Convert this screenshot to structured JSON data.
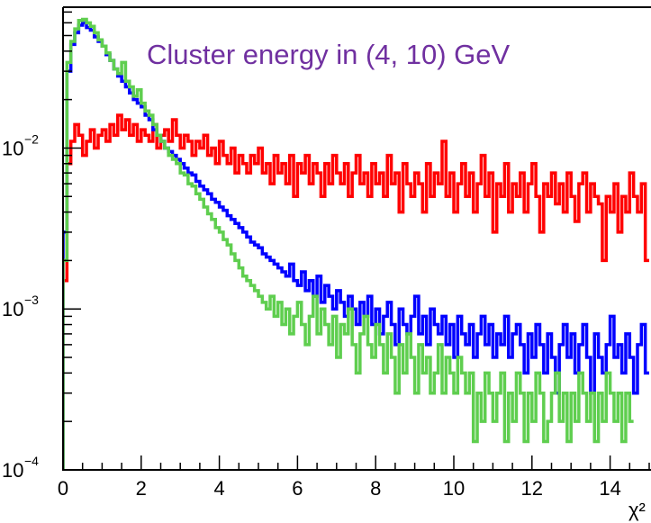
{
  "chart_data": {
    "type": "histogram",
    "title": "Cluster energy in (4, 10) GeV",
    "xlabel": "χ²",
    "ylabel": "",
    "xlim": [
      0,
      15.0
    ],
    "ylim": [
      0.0001,
      0.075
    ],
    "y_scale": "log",
    "grid": false,
    "legend": "none",
    "x_ticks": [
      "0",
      "2",
      "4",
      "6",
      "8",
      "10",
      "12",
      "14"
    ],
    "y_ticks": [
      {
        "base": "10",
        "exp": "−2",
        "value": 0.01
      },
      {
        "base": "10",
        "exp": "−3",
        "value": 0.001
      },
      {
        "base": "10",
        "exp": "−4",
        "value": 0.0001
      }
    ],
    "bin_width": 0.1,
    "colors": {
      "title": "#7030a0",
      "axis": "#000000"
    },
    "series": [
      {
        "color": "#ff0000",
        "values": [
          0.0015,
          0.008,
          0.011,
          0.014,
          0.012,
          0.009,
          0.011,
          0.013,
          0.01,
          0.012,
          0.013,
          0.011,
          0.014,
          0.012,
          0.016,
          0.013,
          0.015,
          0.012,
          0.014,
          0.011,
          0.013,
          0.012,
          0.011,
          0.014,
          0.01,
          0.012,
          0.013,
          0.011,
          0.015,
          0.012,
          0.01,
          0.012,
          0.011,
          0.009,
          0.011,
          0.01,
          0.012,
          0.009,
          0.01,
          0.008,
          0.011,
          0.009,
          0.008,
          0.01,
          0.007,
          0.009,
          0.008,
          0.007,
          0.009,
          0.008,
          0.01,
          0.007,
          0.008,
          0.006,
          0.009,
          0.007,
          0.008,
          0.006,
          0.009,
          0.005,
          0.008,
          0.007,
          0.009,
          0.006,
          0.008,
          0.007,
          0.005,
          0.008,
          0.006,
          0.009,
          0.007,
          0.006,
          0.008,
          0.005,
          0.007,
          0.009,
          0.006,
          0.007,
          0.005,
          0.008,
          0.006,
          0.007,
          0.005,
          0.009,
          0.006,
          0.007,
          0.004,
          0.008,
          0.006,
          0.005,
          0.007,
          0.006,
          0.004,
          0.008,
          0.005,
          0.007,
          0.006,
          0.011,
          0.005,
          0.007,
          0.004,
          0.006,
          0.008,
          0.005,
          0.007,
          0.004,
          0.006,
          0.009,
          0.005,
          0.007,
          0.003,
          0.006,
          0.005,
          0.008,
          0.004,
          0.006,
          0.005,
          0.007,
          0.004,
          0.006,
          0.008,
          0.005,
          0.003,
          0.006,
          0.005,
          0.007,
          0.0045,
          0.006,
          0.004,
          0.007,
          0.005,
          0.0035,
          0.006,
          0.007,
          0.004,
          0.006,
          0.005,
          0.0045,
          0.002,
          0.005,
          0.004,
          0.006,
          0.003,
          0.005,
          0.004,
          0.007,
          0.005,
          0.004,
          0.006,
          0.002
        ]
      },
      {
        "color": "#0000ff",
        "values": [
          0.003,
          0.03,
          0.044,
          0.052,
          0.058,
          0.06,
          0.056,
          0.054,
          0.049,
          0.046,
          0.043,
          0.038,
          0.035,
          0.031,
          0.028,
          0.026,
          0.024,
          0.022,
          0.02,
          0.019,
          0.018,
          0.016,
          0.015,
          0.013,
          0.012,
          0.011,
          0.01,
          0.0095,
          0.009,
          0.0085,
          0.008,
          0.0075,
          0.007,
          0.0068,
          0.0062,
          0.0058,
          0.0055,
          0.0052,
          0.0048,
          0.0046,
          0.0043,
          0.0041,
          0.0038,
          0.0036,
          0.0034,
          0.0032,
          0.003,
          0.0028,
          0.0026,
          0.0025,
          0.0024,
          0.0022,
          0.0021,
          0.002,
          0.0019,
          0.0018,
          0.0017,
          0.0016,
          0.0019,
          0.0015,
          0.0014,
          0.0017,
          0.0013,
          0.0015,
          0.0012,
          0.0016,
          0.0011,
          0.0014,
          0.0012,
          0.001,
          0.0013,
          0.0011,
          0.0009,
          0.0012,
          0.001,
          0.0008,
          0.0011,
          0.0009,
          0.0012,
          0.0008,
          0.001,
          0.0007,
          0.0009,
          0.0011,
          0.0008,
          0.0006,
          0.001,
          0.0008,
          0.0007,
          0.0009,
          0.0012,
          0.0007,
          0.0009,
          0.0006,
          0.001,
          0.0008,
          0.0007,
          0.0009,
          0.0006,
          0.0008,
          0.0005,
          0.0009,
          0.0007,
          0.0006,
          0.0008,
          0.0005,
          0.0007,
          0.0009,
          0.0006,
          0.0008,
          0.0005,
          0.0007,
          0.0006,
          0.0009,
          0.0005,
          0.0007,
          0.0008,
          0.0006,
          0.0004,
          0.0007,
          0.0005,
          0.0008,
          0.0006,
          0.0004,
          0.0007,
          0.0005,
          0.0003,
          0.0006,
          0.0008,
          0.0005,
          0.0007,
          0.0004,
          0.0006,
          0.0008,
          0.0005,
          0.0003,
          0.0007,
          0.0005,
          0.0004,
          0.0006,
          0.0009,
          0.0005,
          0.0006,
          0.0004,
          0.0007,
          0.0005,
          0.0003,
          0.0006,
          0.0008,
          0.0004
        ]
      },
      {
        "color": "#5fce4f",
        "values": [
          0.002,
          0.034,
          0.046,
          0.055,
          0.062,
          0.063,
          0.06,
          0.057,
          0.052,
          0.047,
          0.043,
          0.039,
          0.035,
          0.031,
          0.029,
          0.034,
          0.026,
          0.024,
          0.021,
          0.023,
          0.019,
          0.017,
          0.016,
          0.014,
          0.012,
          0.011,
          0.01,
          0.009,
          0.0085,
          0.008,
          0.007,
          0.0068,
          0.006,
          0.0058,
          0.0052,
          0.0048,
          0.0043,
          0.0039,
          0.0036,
          0.0032,
          0.003,
          0.0027,
          0.0025,
          0.0022,
          0.002,
          0.0018,
          0.0016,
          0.0015,
          0.0014,
          0.0013,
          0.0012,
          0.0011,
          0.001,
          0.0012,
          0.0009,
          0.0011,
          0.0008,
          0.001,
          0.0007,
          0.0009,
          0.0011,
          0.0008,
          0.0006,
          0.0009,
          0.0012,
          0.0007,
          0.001,
          0.0008,
          0.0006,
          0.0009,
          0.0005,
          0.0008,
          0.0007,
          0.001,
          0.0006,
          0.0004,
          0.0007,
          0.0009,
          0.0006,
          0.0005,
          0.0008,
          0.0006,
          0.0004,
          0.0007,
          0.0005,
          0.0003,
          0.0006,
          0.0004,
          0.0007,
          0.0005,
          0.0003,
          0.0006,
          0.0004,
          0.0005,
          0.0003,
          0.0004,
          0.0006,
          0.0003,
          0.0005,
          0.0004,
          0.0003,
          0.0005,
          0.0004,
          0.0003,
          0.0004,
          0.00015,
          0.0003,
          0.0002,
          0.0004,
          0.0003,
          0.0002,
          0.0003,
          0.0004,
          0.00015,
          0.0003,
          0.0002,
          0.0004,
          0.0003,
          0.00015,
          0.0003,
          0.0002,
          0.0004,
          0.0003,
          0.00015,
          0.0002,
          0.0003,
          0.0004,
          0.0002,
          0.0003,
          0.00015,
          0.0003,
          0.0002,
          0.0004,
          0.0003,
          0.0002,
          0.0003,
          0.00015,
          0.0003,
          0.0002,
          0.0004,
          0.0003,
          0.0002,
          0.0003,
          0.00015,
          0.0003,
          0.0002
        ]
      }
    ]
  }
}
